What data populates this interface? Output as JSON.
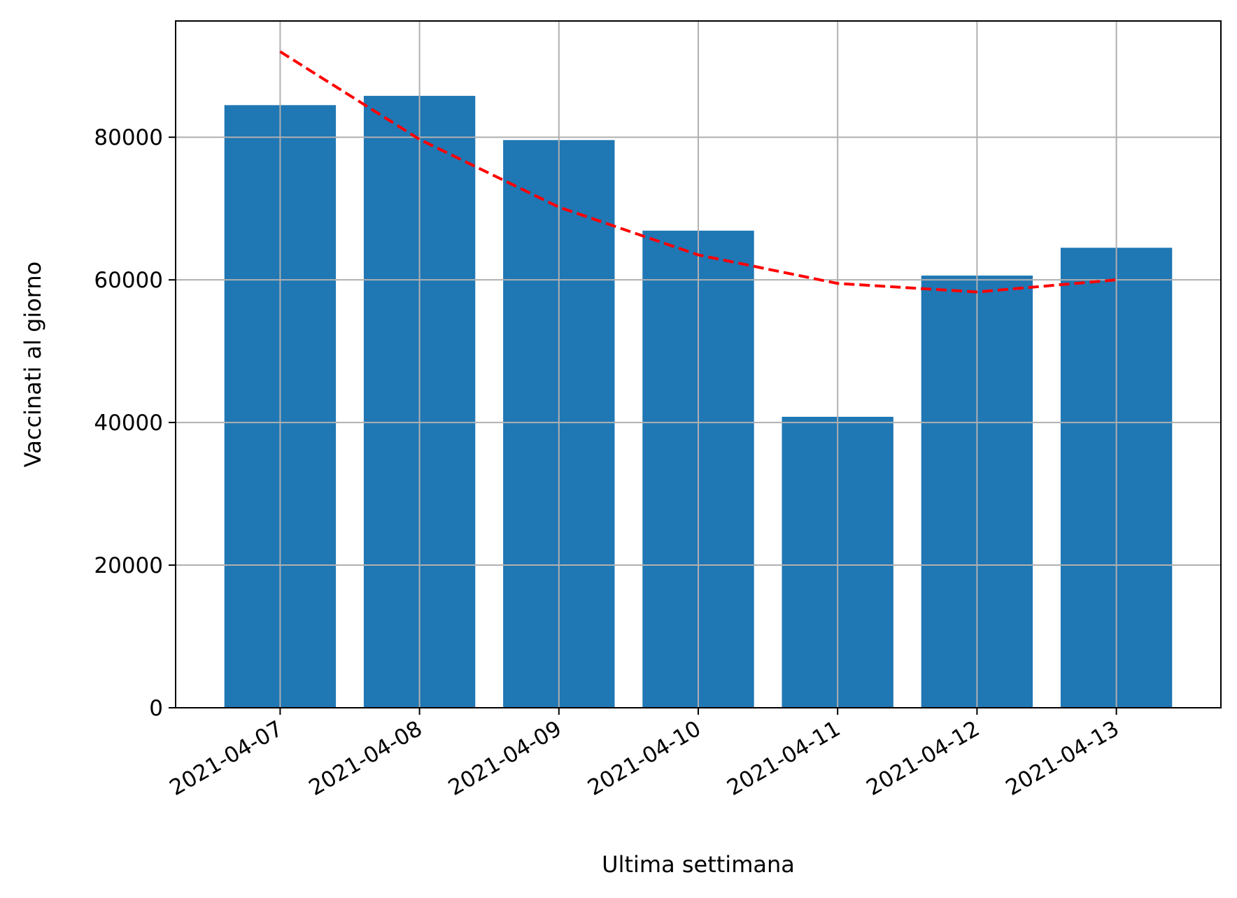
{
  "chart_data": {
    "type": "bar",
    "xlabel": "Ultima settimana",
    "ylabel": "Vaccinati al giorno",
    "categories": [
      "2021-04-07",
      "2021-04-08",
      "2021-04-09",
      "2021-04-10",
      "2021-04-11",
      "2021-04-12",
      "2021-04-13"
    ],
    "series": [
      {
        "values": [
          84500,
          85800,
          79600,
          66900,
          40800,
          60600,
          64500
        ],
        "color": "#1f77b4"
      },
      {
        "style": "dashed",
        "color": "#ff0000",
        "values": [
          92000,
          79700,
          70200,
          63500,
          59500,
          58300,
          60000
        ]
      }
    ],
    "ylim": [
      0,
      96300
    ],
    "yticks": [
      0,
      20000,
      40000,
      60000,
      80000
    ],
    "grid": true
  }
}
